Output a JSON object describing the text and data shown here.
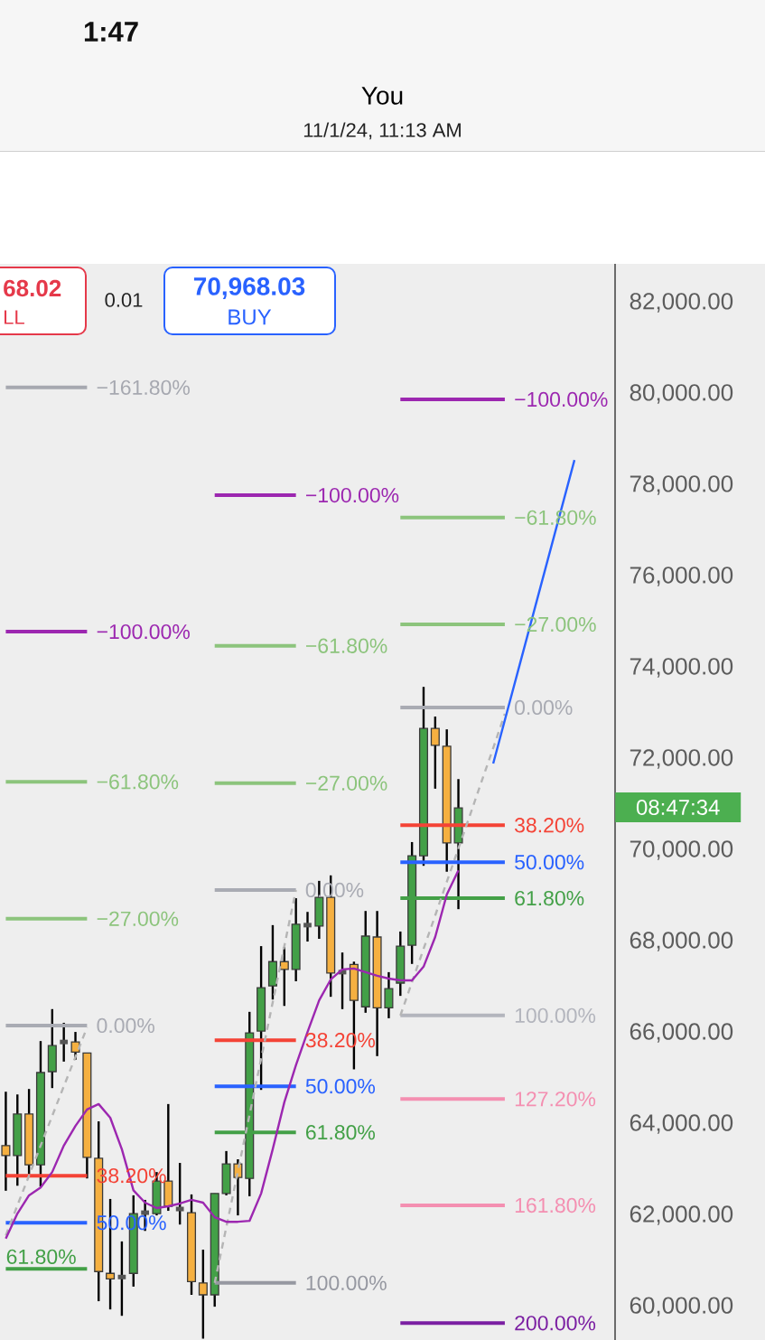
{
  "chart_data": {
    "type": "candlestick",
    "title": "You",
    "subtitle": "11/1/24, 11:13 AM",
    "categories": [
      null,
      null,
      null,
      null,
      null,
      null,
      null,
      null,
      null,
      null,
      null,
      null,
      null,
      null,
      null,
      null,
      null,
      null,
      null,
      null,
      null,
      null,
      null,
      null,
      null,
      null,
      null,
      null,
      null,
      null,
      null,
      null,
      null,
      null,
      null,
      null,
      null,
      null,
      null,
      null,
      null,
      null,
      null,
      null,
      null,
      null,
      null,
      null,
      null,
      null,
      null,
      null,
      null
    ],
    "ohlc": [
      [
        63530,
        64710,
        62540,
        63310
      ],
      [
        63310,
        64650,
        62650,
        64220
      ],
      [
        64220,
        64770,
        62910,
        63110
      ],
      [
        63110,
        65820,
        62630,
        65130
      ],
      [
        65150,
        66520,
        64790,
        65720
      ],
      [
        65800,
        66220,
        65370,
        65800
      ],
      [
        65800,
        66020,
        65410,
        65580
      ],
      [
        65560,
        65560,
        62810,
        63270
      ],
      [
        63250,
        64060,
        60120,
        60770
      ],
      [
        60730,
        62360,
        59940,
        60610
      ],
      [
        60650,
        61430,
        59800,
        60650
      ],
      [
        60730,
        62440,
        60440,
        62040
      ],
      [
        62060,
        62340,
        61660,
        62060
      ],
      [
        62040,
        62950,
        62000,
        62750
      ],
      [
        62750,
        64440,
        62100,
        62200
      ],
      [
        62140,
        63150,
        61800,
        62140
      ],
      [
        62060,
        62460,
        60260,
        60550
      ],
      [
        60520,
        61250,
        59300,
        60260
      ],
      [
        60260,
        62480,
        60000,
        62480
      ],
      [
        62480,
        63410,
        62440,
        63130
      ],
      [
        63130,
        63230,
        62000,
        62830
      ],
      [
        62810,
        66460,
        62420,
        66000
      ],
      [
        66040,
        67900,
        64750,
        66990
      ],
      [
        67030,
        68360,
        66730,
        67560
      ],
      [
        67560,
        67880,
        66590,
        67390
      ],
      [
        67390,
        68950,
        67130,
        68380
      ],
      [
        68360,
        68650,
        68000,
        68360
      ],
      [
        68340,
        69330,
        68060,
        68970
      ],
      [
        68970,
        69450,
        66790,
        67310
      ],
      [
        67330,
        67760,
        66520,
        67330
      ],
      [
        67500,
        67560,
        65200,
        66710
      ],
      [
        66570,
        68670,
        66440,
        68120
      ],
      [
        68100,
        68670,
        65490,
        66550
      ],
      [
        66550,
        67330,
        66320,
        66970
      ],
      [
        67090,
        68220,
        66810,
        67900
      ],
      [
        67920,
        70180,
        67510,
        69880
      ],
      [
        69880,
        73580,
        69660,
        72670
      ],
      [
        72670,
        72930,
        71350,
        72300
      ],
      [
        72280,
        72650,
        69530,
        70160
      ],
      [
        70160,
        71560,
        68710,
        70930
      ],
      null,
      null,
      null,
      null,
      null,
      null,
      null,
      null,
      null,
      null,
      null,
      null,
      null
    ],
    "colors": [
      "#f5b041",
      "#43a047",
      "#f5b041",
      "#43a047",
      "#43a047",
      "#555555",
      "#f5b041",
      "#f5b041",
      "#f5b041",
      "#f5b041",
      "#555555",
      "#43a047",
      "#555555",
      "#43a047",
      "#f5b041",
      "#555555",
      "#f5b041",
      "#f5b041",
      "#43a047",
      "#43a047",
      "#f5b041",
      "#43a047",
      "#43a047",
      "#43a047",
      "#f5b041",
      "#43a047",
      "#555555",
      "#43a047",
      "#f5b041",
      "#555555",
      "#f5b041",
      "#43a047",
      "#f5b041",
      "#43a047",
      "#43a047",
      "#43a047",
      "#43a047",
      "#f5b041",
      "#f5b041",
      "#43a047",
      null,
      null,
      null,
      null,
      null,
      null,
      null,
      null,
      null,
      null,
      null,
      null,
      null
    ],
    "ylim": [
      59270,
      82850
    ],
    "yticks": [
      {
        "value": 60000,
        "label": "60,000.00"
      },
      {
        "value": 62000,
        "label": "62,000.00"
      },
      {
        "value": 64000,
        "label": "64,000.00"
      },
      {
        "value": 66000,
        "label": "66,000.00"
      },
      {
        "value": 68000,
        "label": "68,000.00"
      },
      {
        "value": 70000,
        "label": "70,000.00"
      },
      {
        "value": 72000,
        "label": "72,000.00"
      },
      {
        "value": 74000,
        "label": "74,000.00"
      },
      {
        "value": 76000,
        "label": "76,000.00"
      },
      {
        "value": 78000,
        "label": "78,000.00"
      },
      {
        "value": 80000,
        "label": "80,000.00"
      },
      {
        "value": 82000,
        "label": "82,000.00"
      }
    ],
    "tick_labels": "y",
    "series": [
      {
        "type": "line",
        "name": "−161.80%",
        "color": "#a6a8b0",
        "values": [
          80140,
          80140,
          80140,
          80140,
          80140,
          80140,
          80140,
          80140,
          null,
          null,
          null,
          null,
          null,
          null,
          null,
          null,
          null,
          null,
          null,
          null,
          null,
          null,
          null,
          null,
          null,
          null,
          null,
          null,
          null,
          null,
          null,
          null,
          null,
          null,
          null,
          null,
          null,
          null,
          null,
          null,
          null,
          null,
          null,
          null,
          null,
          null,
          null,
          null,
          null,
          null,
          null,
          null,
          null
        ]
      },
      {
        "type": "line",
        "name": "−100.00%",
        "color": "#9c27b0",
        "values": [
          74790,
          74790,
          74790,
          74790,
          74790,
          74790,
          74790,
          74790,
          null,
          null,
          null,
          null,
          null,
          null,
          null,
          null,
          null,
          null,
          null,
          null,
          null,
          null,
          null,
          null,
          null,
          null,
          null,
          null,
          null,
          null,
          null,
          null,
          null,
          null,
          null,
          null,
          null,
          null,
          null,
          null,
          null,
          null,
          null,
          null,
          null,
          null,
          null,
          null,
          null,
          null,
          null,
          null,
          null
        ]
      },
      {
        "type": "line",
        "name": "−61.80%",
        "color": "#8cc47c",
        "values": [
          71500,
          71500,
          71500,
          71500,
          71500,
          71500,
          71500,
          71500,
          null,
          null,
          null,
          null,
          null,
          null,
          null,
          null,
          null,
          null,
          null,
          null,
          null,
          null,
          null,
          null,
          null,
          null,
          null,
          null,
          null,
          null,
          null,
          null,
          null,
          null,
          null,
          null,
          null,
          null,
          null,
          null,
          null,
          null,
          null,
          null,
          null,
          null,
          null,
          null,
          null,
          null,
          null,
          null,
          null
        ]
      },
      {
        "type": "line",
        "name": "−27.00%",
        "color": "#8cc47c",
        "values": [
          68500,
          68500,
          68500,
          68500,
          68500,
          68500,
          68500,
          68500,
          null,
          null,
          null,
          null,
          null,
          null,
          null,
          null,
          null,
          null,
          null,
          null,
          null,
          null,
          null,
          null,
          null,
          null,
          null,
          null,
          null,
          null,
          null,
          null,
          null,
          null,
          null,
          null,
          null,
          null,
          null,
          null,
          null,
          null,
          null,
          null,
          null,
          null,
          null,
          null,
          null,
          null,
          null,
          null,
          null
        ]
      },
      {
        "type": "line",
        "name": "0.00%",
        "color": "#a9abb3",
        "values": [
          66160,
          66160,
          66160,
          66160,
          66160,
          66160,
          66160,
          66160,
          null,
          null,
          null,
          null,
          null,
          null,
          null,
          null,
          null,
          null,
          null,
          null,
          null,
          null,
          null,
          null,
          null,
          null,
          null,
          null,
          null,
          null,
          null,
          null,
          null,
          null,
          null,
          null,
          null,
          null,
          null,
          null,
          null,
          null,
          null,
          null,
          null,
          null,
          null,
          null,
          null,
          null,
          null,
          null,
          null
        ]
      },
      {
        "type": "line",
        "name": "38.20%",
        "color": "#f44336",
        "values": [
          62870,
          62870,
          62870,
          62870,
          62870,
          62870,
          62870,
          62870,
          null,
          null,
          null,
          null,
          null,
          null,
          null,
          null,
          null,
          null,
          null,
          null,
          null,
          null,
          null,
          null,
          null,
          null,
          null,
          null,
          null,
          null,
          null,
          null,
          null,
          null,
          null,
          null,
          null,
          null,
          null,
          null,
          null,
          null,
          null,
          null,
          null,
          null,
          null,
          null,
          null,
          null,
          null,
          null,
          null
        ]
      },
      {
        "type": "line",
        "name": "50.00%",
        "color": "#2962ff",
        "values": [
          61840,
          61840,
          61840,
          61840,
          61840,
          61840,
          61840,
          61840,
          null,
          null,
          null,
          null,
          null,
          null,
          null,
          null,
          null,
          null,
          null,
          null,
          null,
          null,
          null,
          null,
          null,
          null,
          null,
          null,
          null,
          null,
          null,
          null,
          null,
          null,
          null,
          null,
          null,
          null,
          null,
          null,
          null,
          null,
          null,
          null,
          null,
          null,
          null,
          null,
          null,
          null,
          null,
          null,
          null
        ]
      },
      {
        "type": "line",
        "name": "61.80%",
        "color": "#43a047",
        "values": [
          60830,
          60830,
          60830,
          60830,
          60830,
          60830,
          60830,
          60830,
          null,
          null,
          null,
          null,
          null,
          null,
          null,
          null,
          null,
          null,
          null,
          null,
          null,
          null,
          null,
          null,
          null,
          null,
          null,
          null,
          null,
          null,
          null,
          null,
          null,
          null,
          null,
          null,
          null,
          null,
          null,
          null,
          null,
          null,
          null,
          null,
          null,
          null,
          null,
          null,
          null,
          null,
          null,
          null,
          null
        ]
      },
      {
        "type": "line",
        "name": "−100.00%",
        "color": "#9c27b0",
        "values": [
          null,
          null,
          null,
          null,
          null,
          null,
          null,
          null,
          null,
          null,
          null,
          null,
          null,
          null,
          null,
          null,
          null,
          null,
          77780,
          77780,
          77780,
          77780,
          77780,
          77780,
          77780,
          77780,
          null,
          null,
          null,
          null,
          null,
          null,
          null,
          null,
          null,
          null,
          null,
          null,
          null,
          null,
          null,
          null,
          null,
          null,
          null,
          null,
          null,
          null,
          null,
          null,
          null,
          null,
          null
        ]
      },
      {
        "type": "line",
        "name": "−61.80%",
        "color": "#8cc47c",
        "values": [
          null,
          null,
          null,
          null,
          null,
          null,
          null,
          null,
          null,
          null,
          null,
          null,
          null,
          null,
          null,
          null,
          null,
          null,
          74480,
          74480,
          74480,
          74480,
          74480,
          74480,
          74480,
          74480,
          null,
          null,
          null,
          null,
          null,
          null,
          null,
          null,
          null,
          null,
          null,
          null,
          null,
          null,
          null,
          null,
          null,
          null,
          null,
          null,
          null,
          null,
          null,
          null,
          null,
          null,
          null
        ]
      },
      {
        "type": "line",
        "name": "−27.00%",
        "color": "#8cc47c",
        "values": [
          null,
          null,
          null,
          null,
          null,
          null,
          null,
          null,
          null,
          null,
          null,
          null,
          null,
          null,
          null,
          null,
          null,
          null,
          71470,
          71470,
          71470,
          71470,
          71470,
          71470,
          71470,
          71470,
          null,
          null,
          null,
          null,
          null,
          null,
          null,
          null,
          null,
          null,
          null,
          null,
          null,
          null,
          null,
          null,
          null,
          null,
          null,
          null,
          null,
          null,
          null,
          null,
          null,
          null,
          null
        ]
      },
      {
        "type": "line",
        "name": "0.00%",
        "color": "#a9abb3",
        "values": [
          null,
          null,
          null,
          null,
          null,
          null,
          null,
          null,
          null,
          null,
          null,
          null,
          null,
          null,
          null,
          null,
          null,
          null,
          69130,
          69130,
          69130,
          69130,
          69130,
          69130,
          69130,
          69130,
          null,
          null,
          null,
          null,
          null,
          null,
          null,
          null,
          null,
          null,
          null,
          null,
          null,
          null,
          null,
          null,
          null,
          null,
          null,
          null,
          null,
          null,
          null,
          null,
          null,
          null,
          null
        ]
      },
      {
        "type": "line",
        "name": "38.20%",
        "color": "#f44336",
        "values": [
          null,
          null,
          null,
          null,
          null,
          null,
          null,
          null,
          null,
          null,
          null,
          null,
          null,
          null,
          null,
          null,
          null,
          null,
          65840,
          65840,
          65840,
          65840,
          65840,
          65840,
          65840,
          65840,
          null,
          null,
          null,
          null,
          null,
          null,
          null,
          null,
          null,
          null,
          null,
          null,
          null,
          null,
          null,
          null,
          null,
          null,
          null,
          null,
          null,
          null,
          null,
          null,
          null,
          null,
          null
        ]
      },
      {
        "type": "line",
        "name": "50.00%",
        "color": "#2962ff",
        "values": [
          null,
          null,
          null,
          null,
          null,
          null,
          null,
          null,
          null,
          null,
          null,
          null,
          null,
          null,
          null,
          null,
          null,
          null,
          64830,
          64830,
          64830,
          64830,
          64830,
          64830,
          64830,
          64830,
          null,
          null,
          null,
          null,
          null,
          null,
          null,
          null,
          null,
          null,
          null,
          null,
          null,
          null,
          null,
          null,
          null,
          null,
          null,
          null,
          null,
          null,
          null,
          null,
          null,
          null,
          null
        ]
      },
      {
        "type": "line",
        "name": "61.80%",
        "color": "#43a047",
        "values": [
          null,
          null,
          null,
          null,
          null,
          null,
          null,
          null,
          null,
          null,
          null,
          null,
          null,
          null,
          null,
          null,
          null,
          null,
          63820,
          63820,
          63820,
          63820,
          63820,
          63820,
          63820,
          63820,
          null,
          null,
          null,
          null,
          null,
          null,
          null,
          null,
          null,
          null,
          null,
          null,
          null,
          null,
          null,
          null,
          null,
          null,
          null,
          null,
          null,
          null,
          null,
          null,
          null,
          null,
          null
        ]
      },
      {
        "type": "line",
        "name": "100.00%",
        "color": "#9698a1",
        "values": [
          null,
          null,
          null,
          null,
          null,
          null,
          null,
          null,
          null,
          null,
          null,
          null,
          null,
          null,
          null,
          null,
          null,
          null,
          60520,
          60520,
          60520,
          60520,
          60520,
          60520,
          60520,
          60520,
          null,
          null,
          null,
          null,
          null,
          null,
          null,
          null,
          null,
          null,
          null,
          null,
          null,
          null,
          null,
          null,
          null,
          null,
          null,
          null,
          null,
          null,
          null,
          null,
          null,
          null,
          null
        ]
      },
      {
        "type": "line",
        "name": "−100.00%",
        "color": "#9c27b0",
        "values": [
          null,
          null,
          null,
          null,
          null,
          null,
          null,
          null,
          null,
          null,
          null,
          null,
          null,
          null,
          null,
          null,
          null,
          null,
          null,
          null,
          null,
          null,
          null,
          null,
          null,
          null,
          null,
          null,
          null,
          null,
          null,
          null,
          null,
          null,
          79880,
          79880,
          79880,
          79880,
          79880,
          79880,
          79880,
          79880,
          79880,
          79880,
          null,
          null,
          null,
          null,
          null,
          null,
          null,
          null,
          null
        ]
      },
      {
        "type": "line",
        "name": "−61.80%",
        "color": "#8cc47c",
        "values": [
          null,
          null,
          null,
          null,
          null,
          null,
          null,
          null,
          null,
          null,
          null,
          null,
          null,
          null,
          null,
          null,
          null,
          null,
          null,
          null,
          null,
          null,
          null,
          null,
          null,
          null,
          null,
          null,
          null,
          null,
          null,
          null,
          null,
          null,
          77290,
          77290,
          77290,
          77290,
          77290,
          77290,
          77290,
          77290,
          77290,
          77290,
          null,
          null,
          null,
          null,
          null,
          null,
          null,
          null,
          null
        ]
      },
      {
        "type": "line",
        "name": "−27.00%",
        "color": "#8cc47c",
        "values": [
          null,
          null,
          null,
          null,
          null,
          null,
          null,
          null,
          null,
          null,
          null,
          null,
          null,
          null,
          null,
          null,
          null,
          null,
          null,
          null,
          null,
          null,
          null,
          null,
          null,
          null,
          null,
          null,
          null,
          null,
          null,
          null,
          null,
          null,
          74950,
          74950,
          74950,
          74950,
          74950,
          74950,
          74950,
          74950,
          74950,
          74950,
          null,
          null,
          null,
          null,
          null,
          null,
          null,
          null,
          null
        ]
      },
      {
        "type": "line",
        "name": "0.00%",
        "color": "#a9abb3",
        "values": [
          null,
          null,
          null,
          null,
          null,
          null,
          null,
          null,
          null,
          null,
          null,
          null,
          null,
          null,
          null,
          null,
          null,
          null,
          null,
          null,
          null,
          null,
          null,
          null,
          null,
          null,
          null,
          null,
          null,
          null,
          null,
          null,
          null,
          null,
          73130,
          73130,
          73130,
          73130,
          73130,
          73130,
          73130,
          73130,
          73130,
          73130,
          null,
          null,
          null,
          null,
          null,
          null,
          null,
          null,
          null
        ]
      },
      {
        "type": "line",
        "name": "38.20%",
        "color": "#f44336",
        "values": [
          null,
          null,
          null,
          null,
          null,
          null,
          null,
          null,
          null,
          null,
          null,
          null,
          null,
          null,
          null,
          null,
          null,
          null,
          null,
          null,
          null,
          null,
          null,
          null,
          null,
          null,
          null,
          null,
          null,
          null,
          null,
          null,
          null,
          null,
          70550,
          70550,
          70550,
          70550,
          70550,
          70550,
          70550,
          70550,
          70550,
          70550,
          null,
          null,
          null,
          null,
          null,
          null,
          null,
          null,
          null
        ]
      },
      {
        "type": "line",
        "name": "50.00%",
        "color": "#2962ff",
        "values": [
          null,
          null,
          null,
          null,
          null,
          null,
          null,
          null,
          null,
          null,
          null,
          null,
          null,
          null,
          null,
          null,
          null,
          null,
          null,
          null,
          null,
          null,
          null,
          null,
          null,
          null,
          null,
          null,
          null,
          null,
          null,
          null,
          null,
          null,
          69740,
          69740,
          69740,
          69740,
          69740,
          69740,
          69740,
          69740,
          69740,
          69740,
          null,
          null,
          null,
          null,
          null,
          null,
          null,
          null,
          null
        ]
      },
      {
        "type": "line",
        "name": "61.80%",
        "color": "#43a047",
        "values": [
          null,
          null,
          null,
          null,
          null,
          null,
          null,
          null,
          null,
          null,
          null,
          null,
          null,
          null,
          null,
          null,
          null,
          null,
          null,
          null,
          null,
          null,
          null,
          null,
          null,
          null,
          null,
          null,
          null,
          null,
          null,
          null,
          null,
          null,
          68950,
          68950,
          68950,
          68950,
          68950,
          68950,
          68950,
          68950,
          68950,
          68950,
          null,
          null,
          null,
          null,
          null,
          null,
          null,
          null,
          null
        ]
      },
      {
        "type": "line",
        "name": "100.00%",
        "color": "#b3b5bd",
        "values": [
          null,
          null,
          null,
          null,
          null,
          null,
          null,
          null,
          null,
          null,
          null,
          null,
          null,
          null,
          null,
          null,
          null,
          null,
          null,
          null,
          null,
          null,
          null,
          null,
          null,
          null,
          null,
          null,
          null,
          null,
          null,
          null,
          null,
          null,
          66380,
          66380,
          66380,
          66380,
          66380,
          66380,
          66380,
          66380,
          66380,
          66380,
          null,
          null,
          null,
          null,
          null,
          null,
          null,
          null,
          null
        ]
      },
      {
        "type": "line",
        "name": "127.20%",
        "color": "#f48fb1",
        "values": [
          null,
          null,
          null,
          null,
          null,
          null,
          null,
          null,
          null,
          null,
          null,
          null,
          null,
          null,
          null,
          null,
          null,
          null,
          null,
          null,
          null,
          null,
          null,
          null,
          null,
          null,
          null,
          null,
          null,
          null,
          null,
          null,
          null,
          null,
          64550,
          64550,
          64550,
          64550,
          64550,
          64550,
          64550,
          64550,
          64550,
          64550,
          null,
          null,
          null,
          null,
          null,
          null,
          null,
          null,
          null
        ]
      },
      {
        "type": "line",
        "name": "161.80%",
        "color": "#f48fb1",
        "values": [
          null,
          null,
          null,
          null,
          null,
          null,
          null,
          null,
          null,
          null,
          null,
          null,
          null,
          null,
          null,
          null,
          null,
          null,
          null,
          null,
          null,
          null,
          null,
          null,
          null,
          null,
          null,
          null,
          null,
          null,
          null,
          null,
          null,
          null,
          62220,
          62220,
          62220,
          62220,
          62220,
          62220,
          62220,
          62220,
          62220,
          62220,
          null,
          null,
          null,
          null,
          null,
          null,
          null,
          null,
          null
        ]
      },
      {
        "type": "line",
        "name": "200.00%",
        "color": "#7b1fa2",
        "values": [
          null,
          null,
          null,
          null,
          null,
          null,
          null,
          null,
          null,
          null,
          null,
          null,
          null,
          null,
          null,
          null,
          null,
          null,
          null,
          null,
          null,
          null,
          null,
          null,
          null,
          null,
          null,
          null,
          null,
          null,
          null,
          null,
          null,
          null,
          59640,
          59640,
          59640,
          59640,
          59640,
          59640,
          59640,
          59640,
          59640,
          59640,
          null,
          null,
          null,
          null,
          null,
          null,
          null,
          null,
          null
        ]
      },
      {
        "type": "line",
        "color": "#b5b5b5",
        "line_style": "dashed",
        "values": [
          61560,
          62220,
          62870,
          63530,
          64180,
          64830,
          65470,
          66120,
          null,
          null,
          null,
          null,
          null,
          null,
          null,
          null,
          null,
          null,
          null,
          null,
          null,
          null,
          null,
          null,
          null,
          null,
          null,
          null,
          null,
          null,
          null,
          null,
          null,
          null,
          null,
          null,
          null,
          null,
          null,
          null,
          null,
          null,
          null,
          null,
          null,
          null,
          null,
          null,
          null,
          null,
          null,
          null,
          null
        ]
      },
      {
        "type": "line",
        "color": "#b5b5b5",
        "line_style": "dashed",
        "values": [
          null,
          null,
          null,
          null,
          null,
          null,
          null,
          null,
          null,
          null,
          null,
          null,
          null,
          null,
          null,
          null,
          null,
          null,
          60520,
          61740,
          62970,
          64200,
          65430,
          66670,
          67900,
          69130,
          null,
          null,
          null,
          null,
          null,
          null,
          null,
          null,
          null,
          null,
          null,
          null,
          null,
          null,
          null,
          null,
          null,
          null,
          null,
          null,
          null,
          null,
          null,
          null,
          null,
          null,
          null
        ]
      },
      {
        "type": "line",
        "color": "#b5b5b5",
        "line_style": "dashed",
        "values": [
          null,
          null,
          null,
          null,
          null,
          null,
          null,
          null,
          null,
          null,
          null,
          null,
          null,
          null,
          null,
          null,
          null,
          null,
          null,
          null,
          null,
          null,
          null,
          null,
          null,
          null,
          null,
          null,
          null,
          null,
          null,
          null,
          null,
          null,
          66380,
          67110,
          67840,
          68570,
          69310,
          70040,
          70770,
          71510,
          72240,
          72990,
          null,
          null,
          null,
          null,
          null,
          null,
          null,
          null,
          null
        ]
      },
      {
        "type": "line",
        "color": "#9c27b0",
        "values": [
          61490,
          62040,
          62440,
          62610,
          62950,
          63530,
          63960,
          64320,
          64440,
          64140,
          63450,
          62550,
          62280,
          62160,
          62200,
          62260,
          62340,
          62280,
          61960,
          61860,
          61860,
          61880,
          62480,
          63450,
          64480,
          65290,
          66020,
          66710,
          67170,
          67390,
          67410,
          67330,
          67250,
          67190,
          67150,
          67150,
          67450,
          68100,
          69030,
          69560,
          null,
          null,
          null,
          null,
          null,
          null,
          null,
          null,
          null,
          null,
          null,
          null,
          null
        ]
      },
      {
        "type": "line",
        "color": "#2962ff",
        "values": [
          null,
          null,
          null,
          null,
          null,
          null,
          null,
          null,
          null,
          null,
          null,
          null,
          null,
          null,
          null,
          null,
          null,
          null,
          null,
          null,
          null,
          null,
          null,
          null,
          null,
          null,
          null,
          null,
          null,
          null,
          null,
          null,
          null,
          null,
          null,
          null,
          null,
          null,
          null,
          null,
          null,
          null,
          71900,
          72850,
          73800,
          74750,
          75700,
          76650,
          77600,
          78550,
          null,
          null,
          null
        ]
      }
    ],
    "annotations": [
      "1:47",
      "68.02",
      "LL",
      "0.01",
      "70,968.03",
      "BUY",
      "08:47:34"
    ]
  }
}
